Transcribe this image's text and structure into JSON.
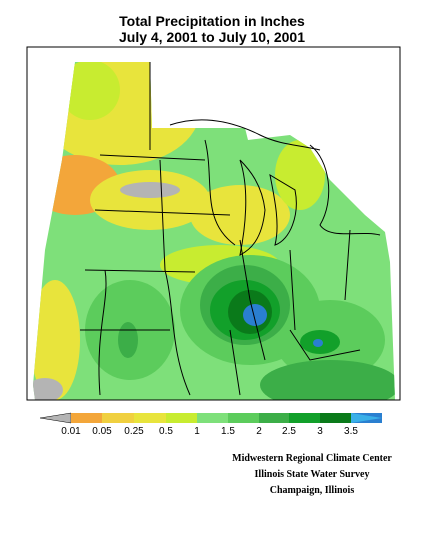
{
  "header": {
    "title": "Total Precipitation in Inches",
    "subtitle": "July 4, 2001 to July 10, 2001"
  },
  "legend": {
    "labels": [
      "0.01",
      "0.05",
      "0.25",
      "0.5",
      "1",
      "1.5",
      "2",
      "2.5",
      "3",
      "3.5"
    ]
  },
  "credits": [
    "Midwestern Regional Climate Center",
    "Illinois State Water Survey",
    "Champaign, Illinois"
  ]
}
